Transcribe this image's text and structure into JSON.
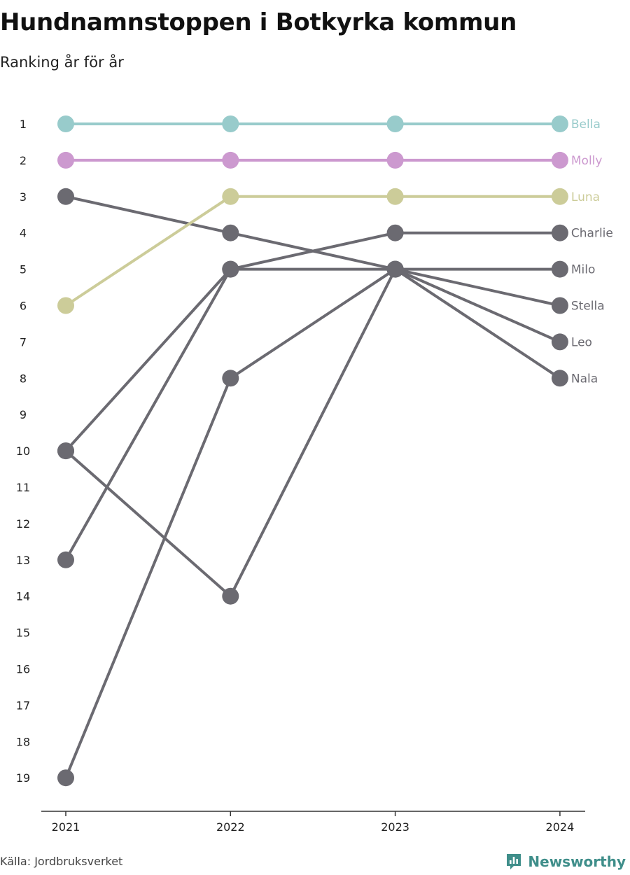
{
  "title": "Hundnamnstoppen i Botkyrka kommun",
  "subtitle": "Ranking år för år",
  "source": "Källa: Jordbruksverket",
  "brand": "Newsworthy",
  "colors": {
    "highlight_bella": "#98cbcb",
    "highlight_molly": "#cc99cf",
    "highlight_luna": "#cccc99",
    "default_line": "#6b6a71",
    "axis": "#333333",
    "brand": "#3f8e8a"
  },
  "chart_data": {
    "type": "line",
    "subtype": "bump",
    "x": [
      "2021",
      "2022",
      "2023",
      "2024"
    ],
    "y_ticks": [
      "1",
      "2",
      "3",
      "4",
      "5",
      "6",
      "7",
      "8",
      "9",
      "10",
      "11",
      "12",
      "13",
      "14",
      "15",
      "16",
      "17",
      "18",
      "19"
    ],
    "y_range": [
      1,
      19
    ],
    "y_reversed": true,
    "series": [
      {
        "name": "Bella",
        "values": [
          1,
          1,
          1,
          1
        ],
        "color": "#98cbcb"
      },
      {
        "name": "Molly",
        "values": [
          2,
          2,
          2,
          2
        ],
        "color": "#cc99cf"
      },
      {
        "name": "Luna",
        "values": [
          6,
          3,
          3,
          3
        ],
        "color": "#cccc99"
      },
      {
        "name": "Charlie",
        "values": [
          10,
          5,
          4,
          4
        ],
        "color": "#6b6a71"
      },
      {
        "name": "Milo",
        "values": [
          3,
          4,
          5,
          5
        ],
        "color": "#6b6a71"
      },
      {
        "name": "Stella",
        "values": [
          13,
          5,
          5,
          6
        ],
        "color": "#6b6a71"
      },
      {
        "name": "Leo",
        "values": [
          19,
          8,
          5,
          7
        ],
        "color": "#6b6a71"
      },
      {
        "name": "Nala",
        "values": [
          10,
          14,
          5,
          8
        ],
        "color": "#6b6a71"
      }
    ]
  }
}
